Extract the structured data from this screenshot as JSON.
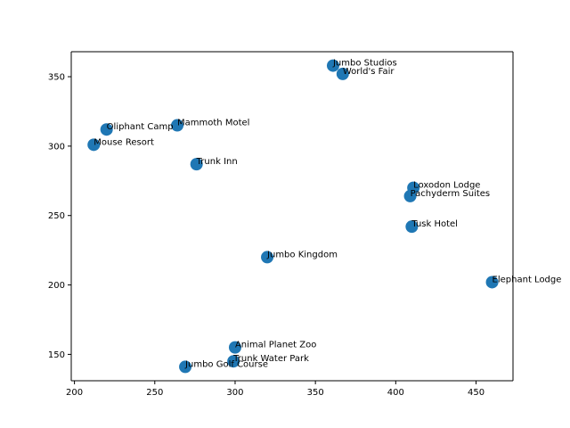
{
  "chart_data": {
    "type": "scatter",
    "title": "",
    "xlabel": "",
    "ylabel": "",
    "xlim": [
      198,
      473
    ],
    "ylim": [
      131,
      368
    ],
    "xticks": [
      200,
      250,
      300,
      350,
      400,
      450
    ],
    "yticks": [
      150,
      200,
      250,
      300,
      350
    ],
    "grid": false,
    "legend": "none",
    "marker_color": "#1f77b4",
    "points": [
      {
        "label": "Jumbo Studios",
        "x": 361,
        "y": 358
      },
      {
        "label": "World's Fair",
        "x": 367,
        "y": 352
      },
      {
        "label": "Mammoth Motel",
        "x": 264,
        "y": 315
      },
      {
        "label": "Oliphant Camp",
        "x": 220,
        "y": 312
      },
      {
        "label": "Mouse Resort",
        "x": 212,
        "y": 301
      },
      {
        "label": "Trunk Inn",
        "x": 276,
        "y": 287
      },
      {
        "label": "Loxodon Lodge",
        "x": 411,
        "y": 270
      },
      {
        "label": "Pachyderm Suites",
        "x": 409,
        "y": 264
      },
      {
        "label": "Tusk Hotel",
        "x": 410,
        "y": 242
      },
      {
        "label": "Jumbo Kingdom",
        "x": 320,
        "y": 220
      },
      {
        "label": "Elephant Lodge",
        "x": 460,
        "y": 202
      },
      {
        "label": "Animal Planet Zoo",
        "x": 300,
        "y": 155
      },
      {
        "label": "Trunk Water Park",
        "x": 299,
        "y": 145
      },
      {
        "label": "Jumbo Golf Course",
        "x": 269,
        "y": 141
      }
    ]
  }
}
